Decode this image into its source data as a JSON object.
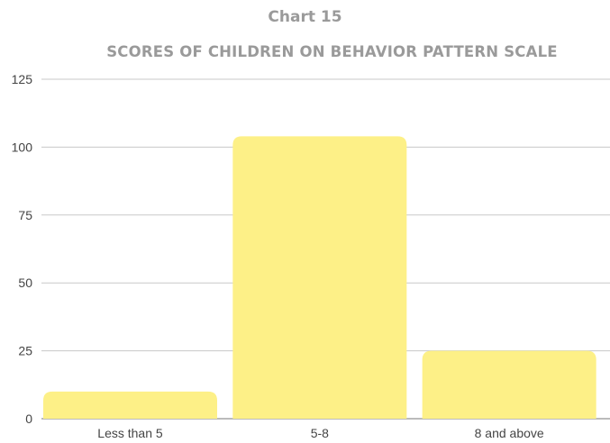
{
  "chart_data": {
    "type": "bar",
    "title": "Chart 15",
    "subtitle": "SCORES OF CHILDREN ON BEHAVIOR PATTERN SCALE",
    "categories": [
      "Less than 5",
      "5-8",
      "8 and above"
    ],
    "values": [
      10,
      104,
      25
    ],
    "yticks": [
      0,
      25,
      50,
      75,
      100,
      125
    ],
    "ylim": [
      0,
      125
    ],
    "grid": true,
    "bar_color": "#fdf087",
    "grid_color": "#c8c8c8"
  }
}
